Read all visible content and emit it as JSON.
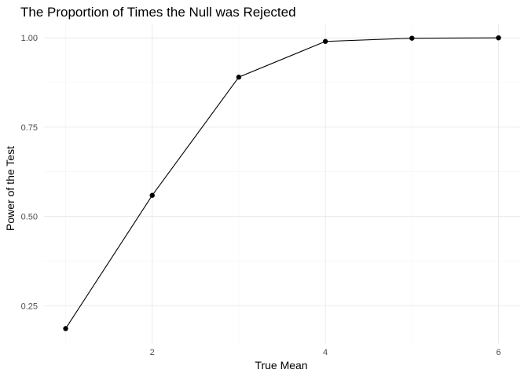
{
  "chart_data": {
    "type": "line",
    "title": "The Proportion of Times the Null was Rejected",
    "xlabel": "True Mean",
    "ylabel": "Power of the Test",
    "x": [
      1,
      2,
      3,
      4,
      5,
      6
    ],
    "series": [
      {
        "values": [
          0.186,
          0.559,
          0.89,
          0.99,
          0.999,
          1.0
        ]
      }
    ],
    "xlim": [
      0.75,
      6.25
    ],
    "ylim": [
      0.145,
      1.04
    ],
    "xticks": [
      2,
      4,
      6
    ],
    "xtick_labels": [
      "2",
      "4",
      "6"
    ],
    "yticks": [
      0.25,
      0.5,
      0.75,
      1.0
    ],
    "ytick_labels": [
      "0.25",
      "0.50",
      "0.75",
      "1.00"
    ],
    "x_minor": [
      1,
      3,
      5
    ],
    "y_minor": [
      0.375,
      0.625,
      0.875
    ],
    "grid": true,
    "line_color": "#000000",
    "point_color": "#000000"
  }
}
